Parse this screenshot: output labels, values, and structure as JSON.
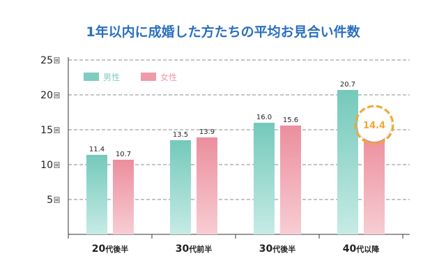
{
  "chart_data": {
    "type": "bar",
    "title": "1年以内に成婚した方たちの平均お見合い件数",
    "unit": "回",
    "categories": [
      "20代後半",
      "30代前半",
      "30代後半",
      "40代以降"
    ],
    "series": [
      {
        "name": "男性",
        "values": [
          11.4,
          13.5,
          16.0,
          20.7
        ],
        "color": "#7fcdc0"
      },
      {
        "name": "女性",
        "values": [
          10.7,
          13.9,
          15.6,
          14.4
        ],
        "color": "#ee9ba8"
      }
    ],
    "value_labels": [
      [
        "11.4",
        "13.5",
        "16.0",
        "20.7"
      ],
      [
        "10.7",
        "13.9",
        "15.6",
        "14.4"
      ]
    ],
    "ylim": [
      0,
      25
    ],
    "yticks": [
      5,
      10,
      15,
      20,
      25
    ],
    "grid": true,
    "legend_position": "top-left",
    "highlight": {
      "series": 1,
      "category": 3,
      "color": "#f0a830"
    }
  }
}
